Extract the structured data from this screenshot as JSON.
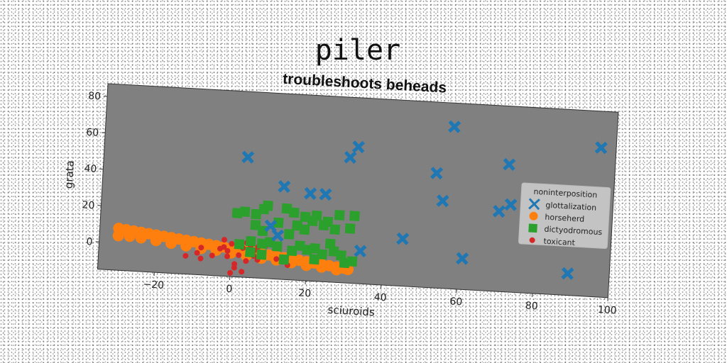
{
  "chart_data": {
    "type": "scatter",
    "suptitle": "piler",
    "title": "troubleshoots beheads",
    "xlabel": "sciuroids",
    "ylabel": "grata",
    "xlim": [
      -35,
      100
    ],
    "ylim": [
      -15,
      87
    ],
    "xticks": [
      -20,
      0,
      20,
      40,
      60,
      80,
      100
    ],
    "yticks": [
      0,
      20,
      40,
      60,
      80
    ],
    "xtick_labels": [
      "−20",
      "0",
      "20",
      "40",
      "60",
      "80",
      "100"
    ],
    "ytick_labels": [
      "0",
      "20",
      "40",
      "60",
      "80"
    ],
    "grid": false,
    "plot_background": "#808080",
    "legend": {
      "title": "noninterposition",
      "position": "right"
    },
    "series": [
      {
        "name": "glottalization",
        "marker": "X",
        "color": "#1f77b4",
        "points": [
          [
            3,
            51
          ],
          [
            13,
            36
          ],
          [
            20,
            33
          ],
          [
            24,
            33
          ],
          [
            10,
            14
          ],
          [
            12,
            9
          ],
          [
            30,
            54
          ],
          [
            32,
            60
          ],
          [
            34,
            3
          ],
          [
            45,
            11
          ],
          [
            53,
            48
          ],
          [
            55,
            33
          ],
          [
            57,
            74
          ],
          [
            61,
            2
          ],
          [
            70,
            29
          ],
          [
            72,
            55
          ],
          [
            73,
            33
          ],
          [
            89,
            -3
          ],
          [
            96,
            67
          ]
        ]
      },
      {
        "name": "horseherd",
        "marker": "o",
        "color": "#ff7f0e",
        "points": [
          [
            -30,
            8
          ],
          [
            -28,
            7.5
          ],
          [
            -26,
            7
          ],
          [
            -24,
            6.5
          ],
          [
            -22,
            6
          ],
          [
            -20,
            5.5
          ],
          [
            -18,
            5
          ],
          [
            -16,
            4.5
          ],
          [
            -14,
            4
          ],
          [
            -12,
            3.5
          ],
          [
            -10,
            3
          ],
          [
            -8,
            2.5
          ],
          [
            -6,
            2
          ],
          [
            -4,
            1.5
          ],
          [
            -2,
            1
          ],
          [
            0,
            0.5
          ],
          [
            2,
            0
          ],
          [
            4,
            -0.5
          ],
          [
            6,
            -1
          ],
          [
            8,
            -1.5
          ],
          [
            10,
            -2
          ],
          [
            12,
            -2.5
          ],
          [
            14,
            -3
          ],
          [
            16,
            -3.5
          ],
          [
            18,
            -4
          ],
          [
            20,
            -4.5
          ],
          [
            22,
            -5
          ],
          [
            24,
            -5.5
          ],
          [
            26,
            -6
          ],
          [
            28,
            -6.5
          ],
          [
            30,
            -7
          ],
          [
            31,
            -7.5
          ],
          [
            -30,
            4
          ],
          [
            -27,
            4
          ],
          [
            -24,
            3.5
          ],
          [
            -20,
            2.5
          ],
          [
            -16,
            1.5
          ],
          [
            -12,
            0.5
          ],
          [
            -8,
            -0.5
          ],
          [
            -4,
            -1
          ],
          [
            0,
            -2
          ],
          [
            4,
            -3
          ],
          [
            8,
            -4
          ],
          [
            12,
            -4.5
          ],
          [
            16,
            -5.5
          ],
          [
            20,
            -6.5
          ],
          [
            24,
            -7
          ],
          [
            28,
            -8
          ]
        ]
      },
      {
        "name": "dictyodromous",
        "marker": "s",
        "color": "#2ca02c",
        "points": [
          [
            1,
            20
          ],
          [
            3,
            21
          ],
          [
            6,
            20
          ],
          [
            8,
            23
          ],
          [
            9,
            25
          ],
          [
            14,
            24
          ],
          [
            16,
            22
          ],
          [
            19,
            20
          ],
          [
            22,
            21
          ],
          [
            25,
            18
          ],
          [
            28,
            22
          ],
          [
            32,
            22
          ],
          [
            6,
            14
          ],
          [
            8,
            11
          ],
          [
            12,
            16
          ],
          [
            17,
            15
          ],
          [
            19,
            13
          ],
          [
            21,
            18
          ],
          [
            24,
            16
          ],
          [
            27,
            14
          ],
          [
            31,
            15
          ],
          [
            2,
            3
          ],
          [
            5,
            5
          ],
          [
            8,
            4
          ],
          [
            10,
            5
          ],
          [
            12,
            3
          ],
          [
            16,
            1
          ],
          [
            18,
            4
          ],
          [
            20,
            2
          ],
          [
            22,
            3
          ],
          [
            24,
            0
          ],
          [
            27,
            2
          ],
          [
            29,
            0
          ],
          [
            30,
            -4
          ],
          [
            32,
            -3
          ],
          [
            5,
            -1
          ],
          [
            8,
            -2
          ],
          [
            14,
            -4
          ],
          [
            22,
            -3
          ],
          [
            15,
            10
          ],
          [
            26,
            6
          ]
        ]
      },
      {
        "name": "toxicant",
        "marker": ".",
        "color": "#d62728",
        "points": [
          [
            -12,
            -5
          ],
          [
            -9,
            -3
          ],
          [
            -8,
            0
          ],
          [
            -8,
            -6
          ],
          [
            -5,
            -4
          ],
          [
            -3,
            0
          ],
          [
            -2,
            1
          ],
          [
            -1,
            -4
          ],
          [
            0,
            3
          ],
          [
            1,
            -8
          ],
          [
            1,
            -10
          ],
          [
            2,
            4
          ],
          [
            3,
            1
          ],
          [
            4,
            -6
          ],
          [
            5,
            2
          ],
          [
            6,
            -3
          ],
          [
            7,
            -5
          ],
          [
            8,
            -1
          ],
          [
            9,
            3
          ],
          [
            10,
            6
          ],
          [
            12,
            -4
          ],
          [
            15,
            -7
          ],
          [
            -1,
            -1
          ],
          [
            2,
            -3
          ],
          [
            6,
            0
          ],
          [
            3,
            -12
          ],
          [
            0,
            -13
          ],
          [
            -2,
            5
          ],
          [
            4,
            4
          ],
          [
            7,
            2
          ]
        ]
      }
    ]
  }
}
